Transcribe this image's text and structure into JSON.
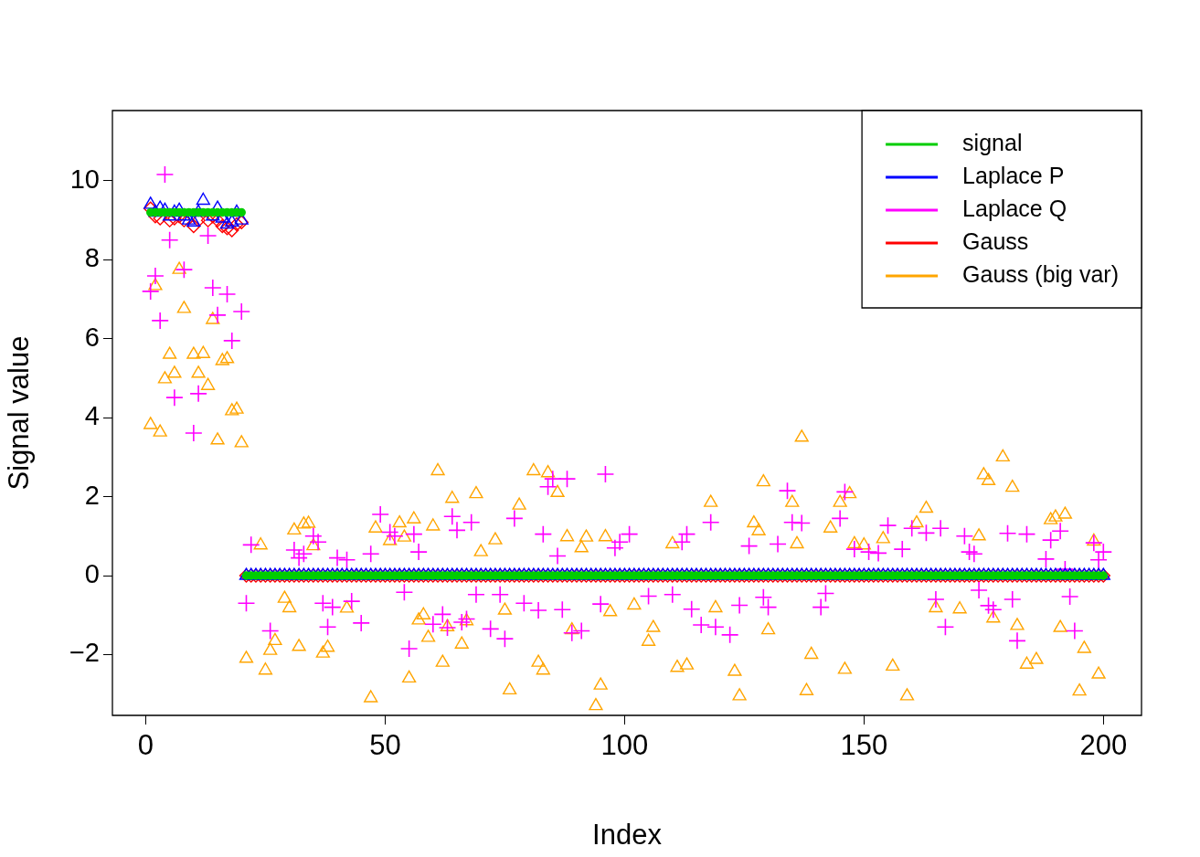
{
  "chart_data": {
    "type": "scatter",
    "xlabel": "Index",
    "ylabel": "Signal value",
    "xlim": [
      -6.96,
      207.96
    ],
    "ylim": [
      -3.54,
      11.78
    ],
    "xticks": [
      0,
      50,
      100,
      150,
      200
    ],
    "yticks": [
      -2,
      0,
      2,
      4,
      6,
      8,
      10
    ],
    "legend": "top right",
    "x": [
      1,
      2,
      3,
      4,
      5,
      6,
      7,
      8,
      9,
      10,
      11,
      12,
      13,
      14,
      15,
      16,
      17,
      18,
      19,
      20,
      21,
      22,
      23,
      24,
      25,
      26,
      27,
      28,
      29,
      30,
      31,
      32,
      33,
      34,
      35,
      36,
      37,
      38,
      39,
      40,
      41,
      42,
      43,
      44,
      45,
      46,
      47,
      48,
      49,
      50,
      51,
      52,
      53,
      54,
      55,
      56,
      57,
      58,
      59,
      60,
      61,
      62,
      63,
      64,
      65,
      66,
      67,
      68,
      69,
      70,
      71,
      72,
      73,
      74,
      75,
      76,
      77,
      78,
      79,
      80,
      81,
      82,
      83,
      84,
      85,
      86,
      87,
      88,
      89,
      90,
      91,
      92,
      93,
      94,
      95,
      96,
      97,
      98,
      99,
      100,
      101,
      102,
      103,
      104,
      105,
      106,
      107,
      108,
      109,
      110,
      111,
      112,
      113,
      114,
      115,
      116,
      117,
      118,
      119,
      120,
      121,
      122,
      123,
      124,
      125,
      126,
      127,
      128,
      129,
      130,
      131,
      132,
      133,
      134,
      135,
      136,
      137,
      138,
      139,
      140,
      141,
      142,
      143,
      144,
      145,
      146,
      147,
      148,
      149,
      150,
      151,
      152,
      153,
      154,
      155,
      156,
      157,
      158,
      159,
      160,
      161,
      162,
      163,
      164,
      165,
      166,
      167,
      168,
      169,
      170,
      171,
      172,
      173,
      174,
      175,
      176,
      177,
      178,
      179,
      180,
      181,
      182,
      183,
      184,
      185,
      186,
      187,
      188,
      189,
      190,
      191,
      192,
      193,
      194,
      195,
      196,
      197,
      198,
      199,
      200
    ],
    "series": [
      {
        "name": "signal",
        "color": "#00cd00",
        "marker": "circle",
        "values": [
          9.2,
          9.2,
          9.2,
          9.2,
          9.2,
          9.2,
          9.2,
          9.2,
          9.2,
          9.2,
          9.2,
          9.2,
          9.2,
          9.2,
          9.2,
          9.2,
          9.2,
          9.2,
          9.2,
          9.2,
          0,
          0,
          0,
          0,
          0,
          0,
          0,
          0,
          0,
          0,
          0,
          0,
          0,
          0,
          0,
          0,
          0,
          0,
          0,
          0,
          0,
          0,
          0,
          0,
          0,
          0,
          0,
          0,
          0,
          0,
          0,
          0,
          0,
          0,
          0,
          0,
          0,
          0,
          0,
          0,
          0,
          0,
          0,
          0,
          0,
          0,
          0,
          0,
          0,
          0,
          0,
          0,
          0,
          0,
          0,
          0,
          0,
          0,
          0,
          0,
          0,
          0,
          0,
          0,
          0,
          0,
          0,
          0,
          0,
          0,
          0,
          0,
          0,
          0,
          0,
          0,
          0,
          0,
          0,
          0,
          0,
          0,
          0,
          0,
          0,
          0,
          0,
          0,
          0,
          0,
          0,
          0,
          0,
          0,
          0,
          0,
          0,
          0,
          0,
          0,
          0,
          0,
          0,
          0,
          0,
          0,
          0,
          0,
          0,
          0,
          0,
          0,
          0,
          0,
          0,
          0,
          0,
          0,
          0,
          0,
          0,
          0,
          0,
          0,
          0,
          0,
          0,
          0,
          0,
          0,
          0,
          0,
          0,
          0,
          0,
          0,
          0,
          0,
          0,
          0,
          0,
          0,
          0,
          0,
          0,
          0,
          0,
          0,
          0,
          0,
          0,
          0,
          0,
          0,
          0,
          0,
          0,
          0,
          0,
          0,
          0,
          0,
          0,
          0,
          0,
          0,
          0,
          0,
          0,
          0,
          0,
          0,
          0,
          0,
          0,
          0,
          0,
          0,
          0,
          0
        ]
      },
      {
        "name": "Laplace P",
        "color": "#0000ff",
        "marker": "triangle",
        "values": [
          9.4,
          9.2,
          9.3,
          9.25,
          9.1,
          9.2,
          9.25,
          9.1,
          9.0,
          8.95,
          9.2,
          9.5,
          null,
          9.1,
          9.3,
          9.05,
          8.9,
          8.95,
          9.2,
          9.0,
          0,
          0,
          0,
          0,
          0,
          0,
          0,
          0,
          0,
          0,
          0,
          0,
          0,
          0,
          0,
          0,
          0,
          0,
          0,
          0,
          0,
          0,
          0,
          0,
          0,
          0,
          0,
          0,
          0,
          0,
          0,
          0,
          0,
          0,
          0,
          0,
          0,
          0,
          0,
          0,
          0,
          0,
          0,
          0,
          0,
          0,
          0,
          0,
          0,
          0,
          0,
          0,
          0,
          0,
          0,
          0,
          0,
          0,
          0,
          0,
          0,
          0,
          0,
          0,
          0,
          0,
          0,
          0,
          0,
          0,
          0,
          0,
          0,
          0,
          0,
          0,
          0,
          0,
          0,
          0,
          0,
          0,
          0,
          0,
          0,
          0,
          0,
          0,
          0,
          0,
          0,
          0,
          0,
          0,
          0,
          0,
          0,
          0,
          0,
          0,
          0,
          0,
          0,
          0,
          0,
          0,
          0,
          0,
          0,
          0,
          0,
          0,
          0,
          0,
          0,
          0,
          0,
          0,
          0,
          0,
          0,
          0,
          0,
          0,
          0,
          0,
          0,
          0,
          0,
          0,
          0,
          0,
          0,
          0,
          0,
          0,
          0,
          0,
          0,
          0,
          0,
          0,
          0,
          0,
          0,
          0,
          0,
          0,
          0,
          0,
          0,
          0,
          0,
          0,
          0,
          0,
          0,
          0,
          0,
          0,
          0,
          0,
          0,
          0,
          0,
          0,
          0,
          0,
          0,
          0,
          0,
          0,
          0,
          0,
          0,
          0,
          0,
          0,
          0,
          0
        ]
      },
      {
        "name": "Laplace Q",
        "color": "#ff00ff",
        "marker": "cross",
        "x": [
          1,
          2,
          3,
          4,
          5,
          6,
          8,
          10,
          11,
          13,
          14,
          15,
          17,
          18,
          20,
          21,
          22,
          26,
          31,
          32,
          33,
          35,
          36,
          37,
          38,
          39,
          40,
          42,
          43,
          45,
          47,
          49,
          51,
          52,
          54,
          55,
          56,
          57,
          60,
          62,
          63,
          64,
          65,
          66,
          67,
          68,
          69,
          72,
          74,
          75,
          77,
          79,
          82,
          83,
          84,
          85,
          86,
          87,
          88,
          89,
          91,
          95,
          96,
          98,
          99,
          101,
          105,
          110,
          112,
          113,
          114,
          116,
          118,
          119,
          122,
          124,
          126,
          129,
          130,
          132,
          134,
          135,
          137,
          141,
          142,
          145,
          146,
          148,
          151,
          153,
          155,
          158,
          160,
          163,
          165,
          166,
          167,
          171,
          172,
          173,
          174,
          176,
          177,
          180,
          181,
          182,
          184,
          188,
          189,
          191,
          192,
          193,
          194,
          198,
          199,
          200
        ],
        "values": [
          7.2,
          7.59,
          6.46,
          10.16,
          8.5,
          4.51,
          7.75,
          3.61,
          4.61,
          8.61,
          7.29,
          6.6,
          7.13,
          5.95,
          6.69,
          -0.7,
          0.78,
          -1.4,
          0.65,
          0.45,
          0.55,
          1.0,
          0.85,
          -0.7,
          -1.3,
          -0.8,
          0.45,
          0.4,
          -0.65,
          -1.2,
          0.55,
          1.55,
          1.1,
          1.0,
          -0.42,
          -1.85,
          1.05,
          0.6,
          -1.23,
          -0.98,
          -1.32,
          1.5,
          1.15,
          -1.18,
          -1.1,
          1.35,
          -0.48,
          -1.35,
          -0.48,
          -1.6,
          1.45,
          -0.7,
          -0.88,
          1.05,
          2.25,
          2.45,
          0.5,
          -0.86,
          2.45,
          -1.45,
          -1.4,
          -0.72,
          2.57,
          0.7,
          0.85,
          1.05,
          -0.52,
          -0.48,
          0.85,
          1.05,
          -0.85,
          -1.25,
          1.35,
          -1.3,
          -1.5,
          -0.75,
          0.75,
          -0.55,
          -0.8,
          0.8,
          2.15,
          1.35,
          1.33,
          -0.8,
          -0.45,
          1.45,
          2.12,
          0.67,
          0.6,
          0.57,
          1.27,
          0.67,
          1.2,
          1.08,
          -0.6,
          1.2,
          -1.3,
          1.0,
          0.6,
          0.55,
          -0.37,
          -0.76,
          -0.86,
          1.07,
          -0.6,
          -1.65,
          1.05,
          0.42,
          0.9,
          1.13,
          0.16,
          -0.53,
          -1.4,
          0.83,
          0.4,
          0.6
        ]
      },
      {
        "name": "Gauss",
        "color": "#ff0000",
        "marker": "diamond",
        "values": [
          9.3,
          9.1,
          9.05,
          null,
          9.0,
          9.05,
          9.1,
          9.0,
          null,
          8.85,
          9.0,
          null,
          9.0,
          9.1,
          9.0,
          8.85,
          8.8,
          8.75,
          8.9,
          8.95,
          0,
          0,
          0,
          0,
          0,
          0,
          0,
          0,
          0,
          0,
          0,
          0,
          0,
          0,
          0,
          0,
          0,
          0,
          0,
          0,
          0,
          0,
          0,
          0,
          0,
          0,
          0,
          0,
          0,
          0,
          0,
          0,
          0,
          0,
          0,
          0,
          0,
          0,
          0,
          0,
          0,
          0,
          0,
          0,
          0,
          0,
          0,
          0,
          0,
          0,
          0,
          0,
          0,
          0,
          0,
          0,
          0,
          0,
          0,
          0,
          0,
          0,
          0,
          0,
          0,
          0,
          0,
          0,
          0,
          0,
          0,
          0,
          0,
          0,
          0,
          0,
          0,
          0,
          0,
          0,
          0,
          0,
          0,
          0,
          0,
          0,
          0,
          0,
          0,
          0,
          0,
          0,
          0,
          0,
          0,
          0,
          0,
          0,
          0,
          0,
          0,
          0,
          0,
          0,
          0,
          0,
          0,
          0,
          0,
          0,
          0,
          0,
          0,
          0,
          0,
          0,
          0,
          0,
          0,
          0,
          0,
          0,
          0,
          0,
          0,
          0,
          0,
          0,
          0,
          0,
          0,
          0,
          0,
          0,
          0,
          0,
          0,
          0,
          0,
          0,
          0,
          0,
          0,
          0,
          0,
          0,
          0,
          0,
          0,
          0,
          0,
          0,
          0,
          0,
          0,
          0,
          0,
          0,
          0,
          0,
          0,
          0,
          0,
          0,
          0,
          0,
          0,
          0,
          0,
          0,
          0,
          0,
          0,
          0,
          0,
          0,
          0,
          0,
          0,
          0
        ]
      },
      {
        "name": "Gauss (big var)",
        "color": "#ffa500",
        "marker": "triangle",
        "x": [
          1,
          2,
          3,
          4,
          5,
          6,
          7,
          8,
          10,
          11,
          12,
          13,
          14,
          15,
          16,
          17,
          18,
          19,
          20,
          21,
          24,
          25,
          26,
          27,
          29,
          30,
          31,
          32,
          33,
          34,
          35,
          37,
          38,
          42,
          47,
          48,
          51,
          53,
          54,
          55,
          56,
          57,
          58,
          59,
          60,
          61,
          62,
          63,
          64,
          66,
          67,
          69,
          70,
          73,
          75,
          76,
          78,
          81,
          82,
          83,
          84,
          86,
          88,
          89,
          91,
          92,
          94,
          95,
          96,
          97,
          102,
          105,
          106,
          110,
          111,
          113,
          118,
          119,
          123,
          124,
          127,
          128,
          129,
          130,
          135,
          136,
          137,
          138,
          139,
          143,
          145,
          146,
          147,
          148,
          150,
          154,
          156,
          159,
          161,
          163,
          165,
          170,
          174,
          175,
          176,
          177,
          179,
          181,
          182,
          184,
          186,
          189,
          190,
          191,
          192,
          195,
          196,
          198,
          199
        ],
        "values": [
          3.82,
          7.34,
          3.63,
          4.98,
          5.6,
          5.12,
          7.75,
          6.76,
          5.6,
          5.12,
          5.62,
          4.81,
          6.48,
          3.43,
          5.44,
          5.49,
          4.17,
          4.21,
          3.36,
          -2.1,
          0.77,
          -2.4,
          -1.9,
          -1.65,
          -0.58,
          -0.82,
          1.15,
          -1.8,
          1.3,
          1.32,
          0.75,
          -1.97,
          -1.82,
          -0.83,
          -3.1,
          1.2,
          0.88,
          1.33,
          0.97,
          -2.6,
          1.43,
          -1.13,
          -1.0,
          -1.57,
          1.25,
          2.65,
          -2.2,
          -1.3,
          1.95,
          -1.74,
          -1.15,
          2.07,
          0.6,
          0.9,
          -0.88,
          -2.9,
          1.78,
          2.65,
          -2.2,
          -2.4,
          2.6,
          2.1,
          0.98,
          -1.38,
          0.7,
          0.97,
          -3.3,
          -2.78,
          0.98,
          -0.92,
          -0.75,
          -1.67,
          -1.32,
          0.8,
          -2.33,
          -2.27,
          1.85,
          -0.82,
          -2.43,
          -3.05,
          1.33,
          1.13,
          2.37,
          -1.38,
          1.85,
          0.8,
          3.5,
          -2.92,
          -2.0,
          1.2,
          1.85,
          -2.38,
          2.07,
          0.8,
          0.77,
          0.93,
          -2.3,
          -3.05,
          1.33,
          1.7,
          -0.82,
          -0.85,
          1.0,
          2.55,
          2.4,
          -1.08,
          3.0,
          2.23,
          -1.27,
          -2.25,
          -2.13,
          1.41,
          1.48,
          -1.32,
          1.55,
          -2.93,
          -1.85,
          0.87,
          -2.5
        ]
      }
    ]
  }
}
